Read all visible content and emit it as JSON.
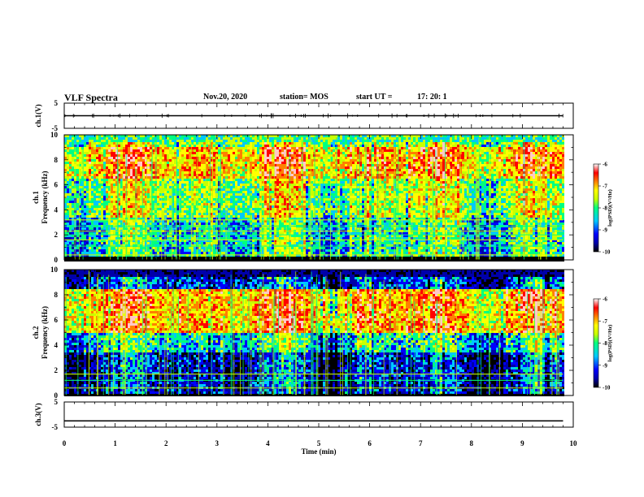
{
  "header": {
    "title": "VLF Spectra",
    "date": "Nov.20, 2020",
    "station": "station= MOS",
    "start": "start UT =",
    "start_time": "17: 20: 1"
  },
  "colors": {
    "trace": "#000000",
    "background": "#ffffff",
    "colormap": [
      "#000000",
      "#0000aa",
      "#0000ff",
      "#00c8ff",
      "#00ff80",
      "#c8ff00",
      "#ffff00",
      "#ff8000",
      "#ff0000",
      "#ffc8c8",
      "#ffffff"
    ]
  },
  "chart_data": [
    {
      "type": "line",
      "panel": "ch1-waveform",
      "ylabel": "ch.1(V)",
      "ylim": [
        -5,
        5
      ],
      "yticks": [
        "5",
        "-5"
      ],
      "xlim": [
        0,
        10
      ],
      "series": [
        {
          "x": [
            0,
            9.8
          ],
          "values": [
            0,
            0
          ]
        }
      ]
    },
    {
      "type": "heatmap",
      "panel": "ch1-spectrogram",
      "ylabel_top": "ch.1",
      "ylabel": "Frequency (kHz)",
      "ylim": [
        0,
        10
      ],
      "yticks": [
        "0",
        "2",
        "4",
        "6",
        "8",
        "10"
      ],
      "xlim": [
        0,
        10
      ],
      "data_xmax": 9.8,
      "colorbar": {
        "label": "log(PSD)(V²/Hz)",
        "range": [
          -10,
          -6
        ],
        "ticks": [
          "-6",
          "-7",
          "-8",
          "-9",
          "-10"
        ]
      },
      "intense_band_khz": [
        6.5,
        9.2
      ],
      "lines_khz": [
        0.4,
        1.1,
        1.6,
        2.0,
        2.3,
        2.7,
        3.2
      ]
    },
    {
      "type": "heatmap",
      "panel": "ch2-spectrogram",
      "ylabel_top": "ch.2",
      "ylabel": "Frequency (kHz)",
      "ylim": [
        0,
        10
      ],
      "yticks": [
        "0",
        "2",
        "4",
        "6",
        "8",
        "10"
      ],
      "xlim": [
        0,
        10
      ],
      "data_xmax": 9.8,
      "colorbar": {
        "label": "log(PSD)(V²/Hz)",
        "range": [
          -10,
          -6
        ],
        "ticks": [
          "-6",
          "-7",
          "-8",
          "-9",
          "-10"
        ]
      },
      "intense_band_khz": [
        5.0,
        8.5
      ],
      "lines_khz": [
        0.6,
        1.2,
        1.7
      ]
    },
    {
      "type": "line",
      "panel": "ch3-waveform",
      "ylabel": "ch.3(V)",
      "ylim": [
        -5,
        5
      ],
      "yticks": [
        "5",
        "-5"
      ],
      "xlim": [
        0,
        10
      ],
      "xlabel": "Time (min)",
      "xticks": [
        "0",
        "1",
        "2",
        "3",
        "4",
        "5",
        "6",
        "7",
        "8",
        "9",
        "10"
      ],
      "series": [
        {
          "x": [
            0,
            9.8
          ],
          "values": [
            -2.5,
            -2.5
          ]
        }
      ]
    }
  ]
}
